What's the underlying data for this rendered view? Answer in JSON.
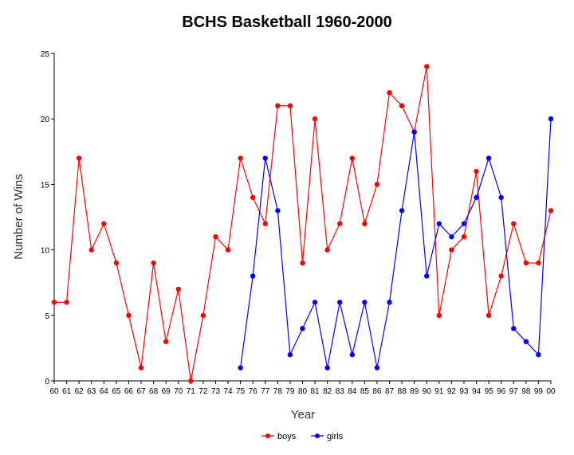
{
  "chart_data": {
    "type": "line",
    "title": "BCHS Basketball 1960-2000",
    "xlabel": "Year",
    "ylabel": "Number of Wins",
    "ylim": [
      0,
      25
    ],
    "yticks": [
      0,
      5,
      10,
      15,
      20,
      25
    ],
    "grid": false,
    "legend_position": "bottom",
    "categories": [
      "60",
      "61",
      "62",
      "63",
      "64",
      "65",
      "66",
      "67",
      "68",
      "69",
      "70",
      "71",
      "72",
      "73",
      "74",
      "75",
      "76",
      "77",
      "78",
      "79",
      "80",
      "81",
      "82",
      "83",
      "84",
      "85",
      "86",
      "87",
      "88",
      "89",
      "90",
      "91",
      "92",
      "93",
      "94",
      "95",
      "96",
      "97",
      "98",
      "99",
      "00"
    ],
    "series": [
      {
        "name": "boys",
        "color": "#ff0000",
        "values": [
          6,
          6,
          17,
          10,
          12,
          9,
          5,
          1,
          9,
          3,
          7,
          0,
          5,
          11,
          10,
          17,
          14,
          12,
          21,
          21,
          9,
          20,
          10,
          12,
          17,
          12,
          15,
          22,
          21,
          19,
          24,
          5,
          10,
          11,
          16,
          5,
          8,
          12,
          9,
          9,
          13
        ]
      },
      {
        "name": "girls",
        "color": "#0000ff",
        "values": [
          null,
          null,
          null,
          null,
          null,
          null,
          null,
          null,
          null,
          null,
          null,
          null,
          null,
          null,
          null,
          1,
          8,
          17,
          13,
          2,
          4,
          6,
          1,
          6,
          2,
          6,
          1,
          6,
          13,
          19,
          8,
          12,
          11,
          12,
          14,
          17,
          14,
          4,
          3,
          2,
          20
        ]
      }
    ]
  }
}
